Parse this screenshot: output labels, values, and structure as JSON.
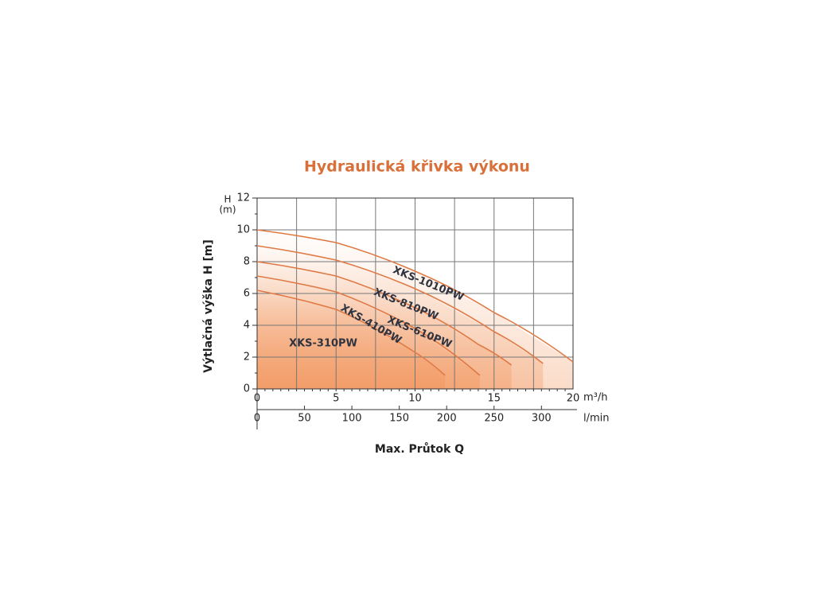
{
  "chart_data": {
    "type": "line",
    "title": "Hydraulická křivka výkonu",
    "y_label": "Výtlačná výška H [m]",
    "y_unit_top": "H",
    "y_unit_bottom": "(m)",
    "x_label": "Max. Průtok Q",
    "x_unit": "m³/h",
    "x2_unit": "l/min",
    "xlim": [
      0,
      20
    ],
    "xticks": [
      0,
      5,
      10,
      15,
      20
    ],
    "x2lim": [
      0,
      333.33
    ],
    "x2ticks": [
      0,
      50,
      100,
      150,
      200,
      250,
      300
    ],
    "ylim": [
      0,
      12
    ],
    "yticks": [
      0,
      2,
      4,
      6,
      8,
      10,
      12
    ],
    "grid": true,
    "color": "#e07a45",
    "series": [
      {
        "name": "XKS-1010PW",
        "x": [
          0,
          5,
          10,
          15,
          20
        ],
        "values": [
          10,
          9.2,
          7.4,
          4.8,
          1.7
        ]
      },
      {
        "name": "XKS-810PW",
        "x": [
          0,
          5,
          10,
          15,
          18.1
        ],
        "values": [
          9,
          8.1,
          6.3,
          3.6,
          1.6
        ]
      },
      {
        "name": "XKS-610PW",
        "x": [
          0,
          5,
          10,
          14,
          16.1
        ],
        "values": [
          8,
          7.1,
          5.1,
          2.8,
          1.5
        ]
      },
      {
        "name": "XKS-410PW",
        "x": [
          0,
          5,
          10,
          14.1
        ],
        "values": [
          7.1,
          6.1,
          3.8,
          0.85
        ]
      },
      {
        "name": "XKS-310PW",
        "x": [
          0,
          5,
          10,
          11.9
        ],
        "values": [
          6.2,
          5.0,
          2.3,
          0.85
        ]
      }
    ]
  }
}
